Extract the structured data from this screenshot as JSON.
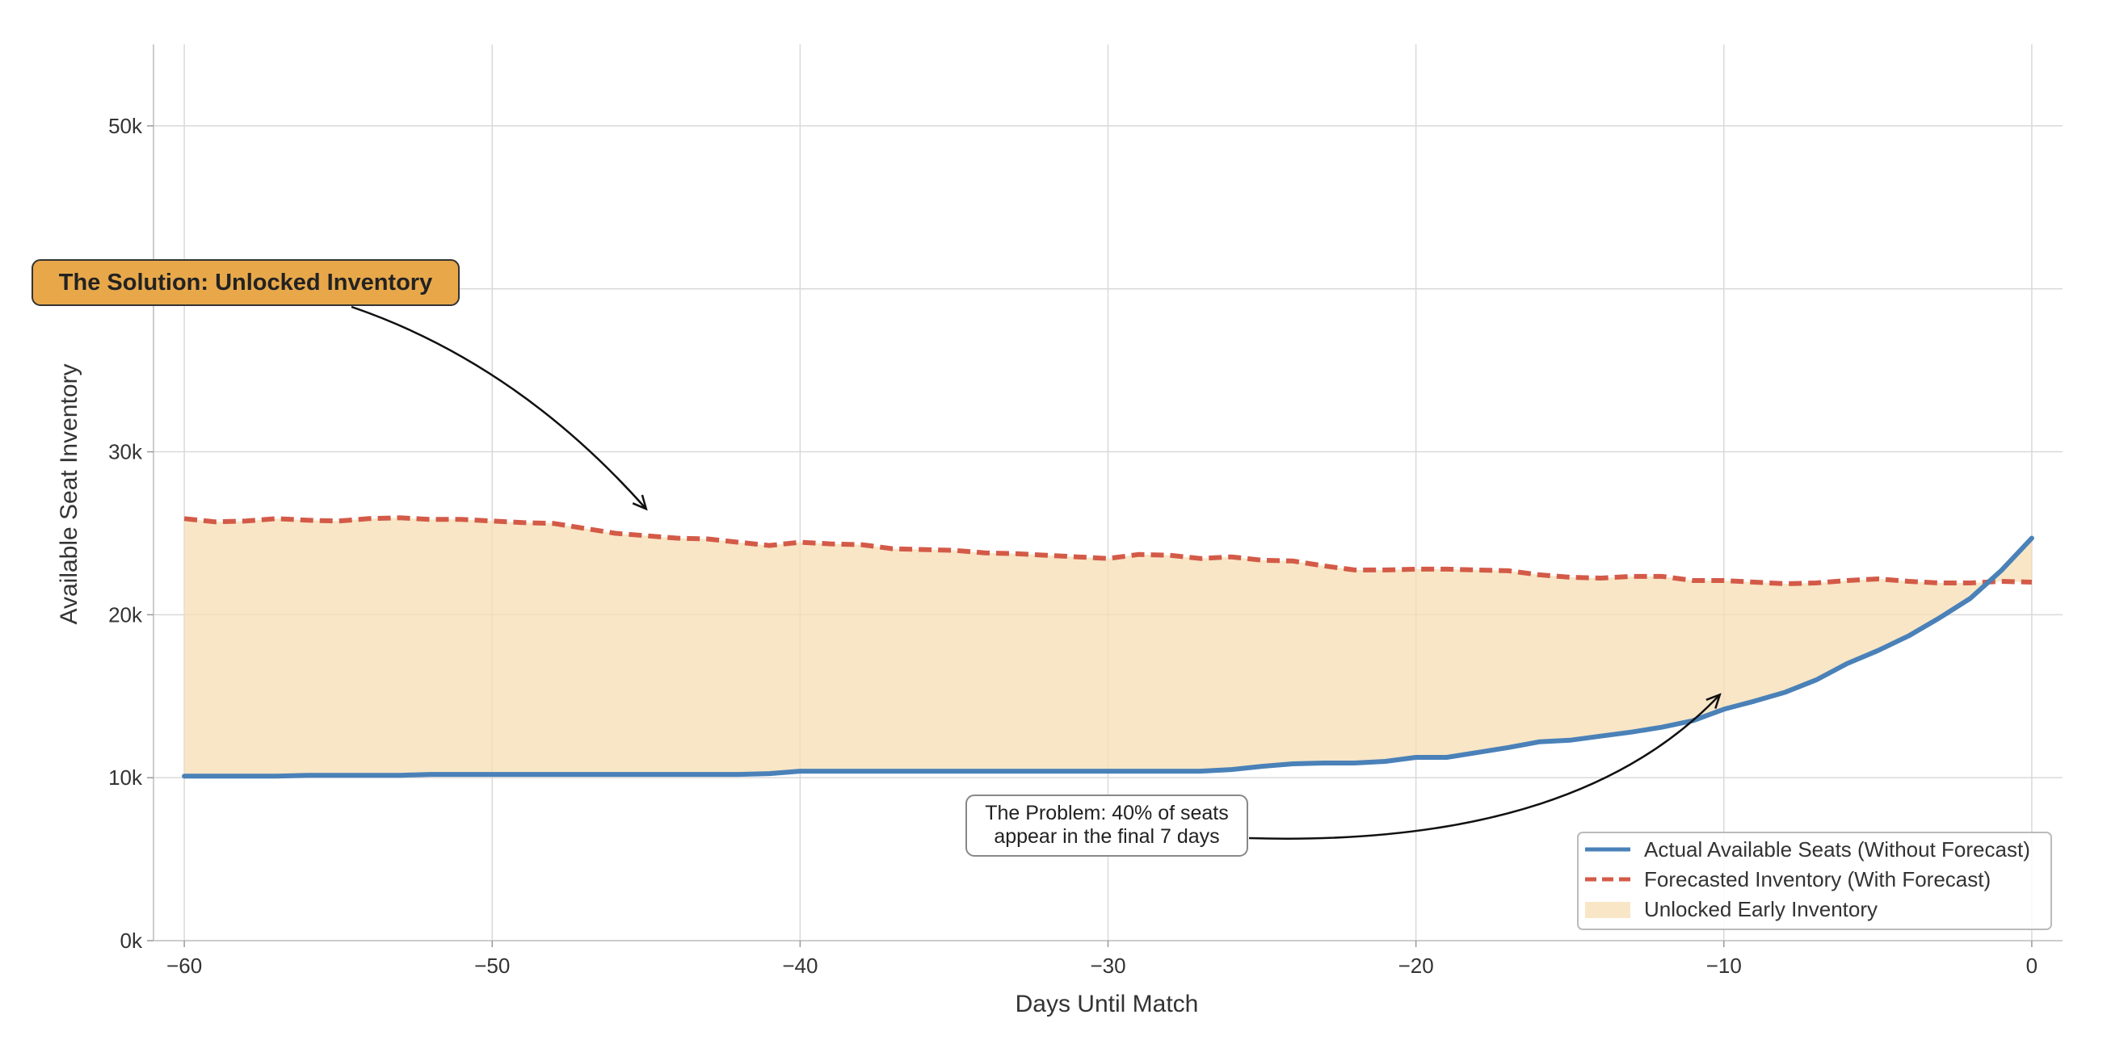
{
  "chart_data": {
    "type": "area",
    "xlabel": "Days Until Match",
    "ylabel": "Available Seat Inventory",
    "xlim": [
      -61,
      1
    ],
    "ylim": [
      0,
      55000
    ],
    "xticks": [
      -60,
      -50,
      -40,
      -30,
      -20,
      -10,
      0
    ],
    "xtick_labels": [
      "−60",
      "−50",
      "−40",
      "−30",
      "−20",
      "−10",
      "0"
    ],
    "yticks": [
      0,
      10000,
      20000,
      30000,
      40000,
      50000
    ],
    "ytick_labels": [
      "0k",
      "10k",
      "20k",
      "30k",
      "40k",
      "50k"
    ],
    "grid": true,
    "legend_position": "bottom-right",
    "series": [
      {
        "name": "Actual Available Seats (Without Forecast)",
        "style": "solid",
        "color": "#4a81b8",
        "x": [
          -60,
          -59,
          -58,
          -57,
          -56,
          -55,
          -54,
          -53,
          -52,
          -51,
          -50,
          -49,
          -48,
          -47,
          -46,
          -45,
          -44,
          -43,
          -42,
          -41,
          -40,
          -39,
          -38,
          -37,
          -36,
          -35,
          -34,
          -33,
          -32,
          -31,
          -30,
          -29,
          -28,
          -27,
          -26,
          -25,
          -24,
          -23,
          -22,
          -21,
          -20,
          -19,
          -18,
          -17,
          -16,
          -15,
          -14,
          -13,
          -12,
          -11,
          -10,
          -9,
          -8,
          -7,
          -6,
          -5,
          -4,
          -3,
          -2,
          -1,
          0
        ],
        "values": [
          10100,
          10100,
          10100,
          10100,
          10150,
          10150,
          10150,
          10150,
          10200,
          10200,
          10200,
          10200,
          10200,
          10200,
          10200,
          10200,
          10200,
          10200,
          10200,
          10250,
          10400,
          10400,
          10400,
          10400,
          10400,
          10400,
          10400,
          10400,
          10400,
          10400,
          10400,
          10400,
          10400,
          10400,
          10500,
          10700,
          10850,
          10900,
          10900,
          11000,
          11250,
          11250,
          11550,
          11850,
          12200,
          12300,
          12550,
          12800,
          13100,
          13500,
          14200,
          14700,
          15250,
          16000,
          17000,
          17800,
          18700,
          19800,
          21000,
          22700,
          24700
        ]
      },
      {
        "name": "Forecasted Inventory (With Forecast)",
        "style": "dashed",
        "color": "#d45a48",
        "x": [
          -60,
          -59,
          -58,
          -57,
          -56,
          -55,
          -54,
          -53,
          -52,
          -51,
          -50,
          -49,
          -48,
          -47,
          -46,
          -45,
          -44,
          -43,
          -42,
          -41,
          -40,
          -39,
          -38,
          -37,
          -36,
          -35,
          -34,
          -33,
          -32,
          -31,
          -30,
          -29,
          -28,
          -27,
          -26,
          -25,
          -24,
          -23,
          -22,
          -21,
          -20,
          -19,
          -18,
          -17,
          -16,
          -15,
          -14,
          -13,
          -12,
          -11,
          -10,
          -9,
          -8,
          -7,
          -6,
          -5,
          -4,
          -3,
          -2,
          -1,
          0
        ],
        "values": [
          25900,
          25700,
          25750,
          25900,
          25800,
          25750,
          25900,
          25950,
          25850,
          25850,
          25750,
          25650,
          25600,
          25300,
          25000,
          24850,
          24700,
          24650,
          24450,
          24250,
          24450,
          24350,
          24300,
          24050,
          24000,
          23950,
          23800,
          23750,
          23650,
          23550,
          23450,
          23700,
          23650,
          23450,
          23550,
          23350,
          23300,
          23000,
          22750,
          22750,
          22800,
          22800,
          22750,
          22700,
          22450,
          22300,
          22250,
          22350,
          22350,
          22100,
          22100,
          22000,
          21900,
          21950,
          22100,
          22200,
          22050,
          21950,
          21950,
          22050,
          22000
        ]
      }
    ],
    "fill": {
      "name": "Unlocked Early Inventory",
      "between": [
        "Actual Available Seats (Without Forecast)",
        "Forecasted Inventory (With Forecast)"
      ],
      "color": "#f5deb3"
    },
    "annotations": [
      {
        "text": "The Solution: Unlocked Inventory",
        "target_x": -45,
        "target_y": 26000,
        "boxed": true,
        "box_color": "#e8a84a"
      },
      {
        "text_lines": [
          "The Problem: 40% of seats",
          "appear in the final 7 days"
        ],
        "target_x": -10,
        "target_y": 14700,
        "boxed": true,
        "box_color": "#ffffff"
      }
    ],
    "colors": {
      "actual": "#4a81b8",
      "forecast": "#d45a48",
      "fill": "#f5deb3",
      "solution_box": "#e8a84a",
      "grid": "#d9d9d9"
    }
  }
}
